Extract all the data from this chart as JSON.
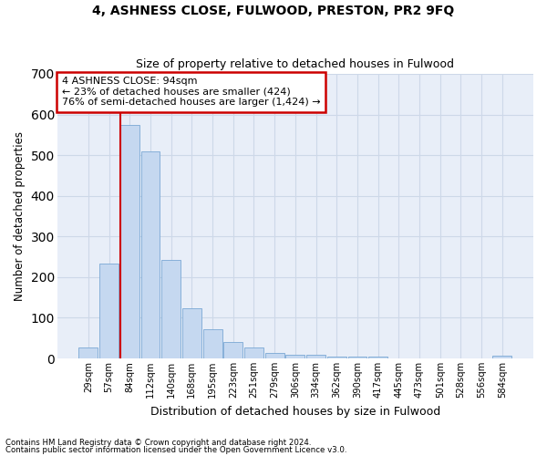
{
  "title": "4, ASHNESS CLOSE, FULWOOD, PRESTON, PR2 9FQ",
  "subtitle": "Size of property relative to detached houses in Fulwood",
  "xlabel": "Distribution of detached houses by size in Fulwood",
  "ylabel": "Number of detached properties",
  "bar_color": "#c5d8f0",
  "bar_edge_color": "#7aa8d4",
  "grid_color": "#cdd8e8",
  "background_color": "#e8eef8",
  "annotation_box_color": "#cc0000",
  "vline_color": "#cc0000",
  "categories": [
    "29sqm",
    "57sqm",
    "84sqm",
    "112sqm",
    "140sqm",
    "168sqm",
    "195sqm",
    "223sqm",
    "251sqm",
    "279sqm",
    "306sqm",
    "334sqm",
    "362sqm",
    "390sqm",
    "417sqm",
    "445sqm",
    "473sqm",
    "501sqm",
    "528sqm",
    "556sqm",
    "584sqm"
  ],
  "values": [
    27,
    234,
    575,
    510,
    242,
    124,
    71,
    40,
    26,
    14,
    10,
    10,
    5,
    5,
    5,
    0,
    0,
    0,
    0,
    0,
    7
  ],
  "property_label": "4 ASHNESS CLOSE: 94sqm",
  "pct_smaller": "23%",
  "n_smaller": "424",
  "pct_larger_semi": "76%",
  "n_larger_semi": "1,424",
  "vline_x_index": 2,
  "ylim": [
    0,
    700
  ],
  "yticks": [
    0,
    100,
    200,
    300,
    400,
    500,
    600,
    700
  ],
  "footnote1": "Contains HM Land Registry data © Crown copyright and database right 2024.",
  "footnote2": "Contains public sector information licensed under the Open Government Licence v3.0."
}
